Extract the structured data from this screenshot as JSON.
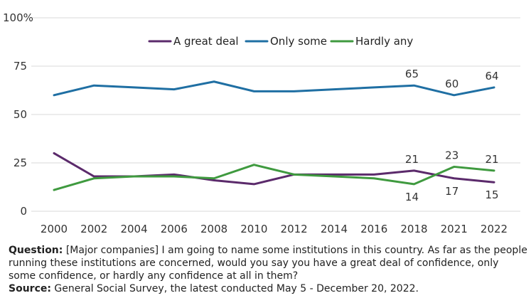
{
  "chart_data": {
    "type": "line",
    "x": [
      "2000",
      "2002",
      "2004",
      "2006",
      "2008",
      "2010",
      "2012",
      "2014",
      "2016",
      "2018",
      "2021",
      "2022"
    ],
    "ylim": [
      0,
      100
    ],
    "yticks": [
      0,
      25,
      50,
      75,
      100
    ],
    "ytick_labels": [
      "0",
      "25",
      "50",
      "75",
      "100%"
    ],
    "legend_position": "top-center",
    "grid": "horizontal",
    "series": [
      {
        "name": "A great deal",
        "color": "#5b2a6b",
        "values": [
          30,
          18,
          18,
          19,
          16,
          14,
          19,
          19,
          19,
          21,
          17,
          15
        ],
        "labels": {
          "9": "21",
          "10": "17",
          "11": "15"
        },
        "label_side": {
          "9": "above",
          "10": "below",
          "11": "below"
        }
      },
      {
        "name": "Only some",
        "color": "#1f6fa3",
        "values": [
          60,
          65,
          64,
          63,
          67,
          62,
          62,
          63,
          64,
          65,
          60,
          64
        ],
        "labels": {
          "9": "65",
          "10": "60",
          "11": "64"
        },
        "label_side": {
          "9": "above",
          "10": "above",
          "11": "above"
        }
      },
      {
        "name": "Hardly any",
        "color": "#3f9a3f",
        "values": [
          11,
          17,
          18,
          18,
          17,
          24,
          19,
          18,
          17,
          14,
          23,
          21
        ],
        "labels": {
          "9": "14",
          "10": "23",
          "11": "21"
        },
        "label_side": {
          "9": "below",
          "10": "above",
          "11": "above"
        }
      }
    ]
  },
  "footer": {
    "question_label": "Question:",
    "question_text": " [Major companies] I am going to name some institutions in this country. As far as the people running these institutions are concerned, would you say you have a great deal of confidence, only some confidence, or hardly any confidence at all in them?",
    "source_label": "Source:",
    "source_text": " General Social Survey, the latest conducted May 5 - December 20, 2022."
  }
}
